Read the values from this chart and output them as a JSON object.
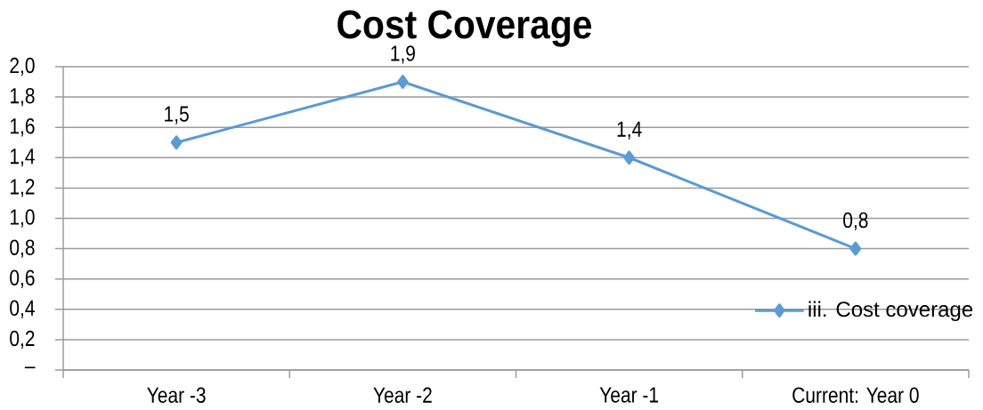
{
  "chart_data": {
    "type": "line",
    "title": "Cost Coverage",
    "categories": [
      "Year -3",
      "Year -2",
      "Year -1",
      "Current: Year 0"
    ],
    "series": [
      {
        "name": "iii. Cost coverage",
        "color": "#5b9bd5",
        "values": [
          1.5,
          1.9,
          1.4,
          0.8
        ],
        "value_labels": [
          "1,5",
          "1,9",
          "1,4",
          "0,8"
        ]
      }
    ],
    "ylim": [
      0,
      2
    ],
    "yticks": [
      {
        "value": 0,
        "label": "–"
      },
      {
        "value": 0.2,
        "label": "0,2"
      },
      {
        "value": 0.4,
        "label": "0,4"
      },
      {
        "value": 0.6,
        "label": "0,6"
      },
      {
        "value": 0.8,
        "label": "0,8"
      },
      {
        "value": 1.0,
        "label": "1,0"
      },
      {
        "value": 1.2,
        "label": "1,2"
      },
      {
        "value": 1.4,
        "label": "1,4"
      },
      {
        "value": 1.6,
        "label": "1,6"
      },
      {
        "value": 1.8,
        "label": "1,8"
      },
      {
        "value": 2.0,
        "label": "2,0"
      }
    ],
    "grid": "y",
    "legend": "bottom right",
    "marker": "diamond",
    "line_style": "solid"
  }
}
